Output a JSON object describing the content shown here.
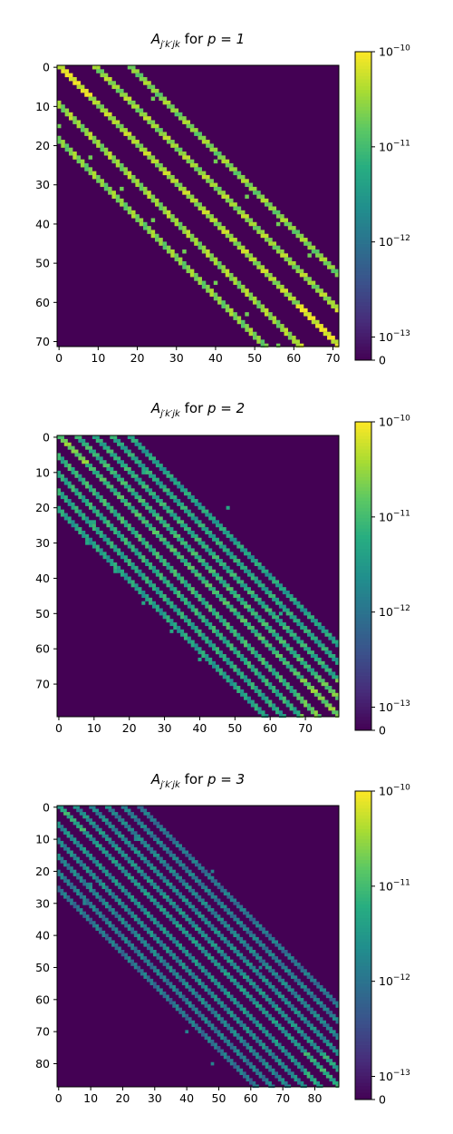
{
  "chart_data": [
    {
      "type": "heatmap",
      "title": {
        "symbol": "A",
        "subscript": "j′k′jk",
        "text": " for ",
        "param": "p = 1"
      },
      "size": 72,
      "x_ticks": [
        0,
        10,
        20,
        30,
        40,
        50,
        60,
        70
      ],
      "y_ticks": [
        0,
        10,
        20,
        30,
        40,
        50,
        60,
        70
      ],
      "colorbar": {
        "scale": "symlog",
        "range": [
          0,
          1e-10
        ],
        "linthresh": 1e-13,
        "ticks": [
          "10",
          "10",
          "10",
          "10",
          "0"
        ],
        "tick_exponents": [
          "−10",
          "−11",
          "−12",
          "−13",
          ""
        ]
      },
      "band_offsets": [
        0,
        9,
        18
      ],
      "band_level_exponent": -10.7,
      "outlier_rows": [
        [
          8,
          24
        ],
        [
          15,
          0
        ],
        [
          23,
          8
        ],
        [
          24,
          40
        ],
        [
          31,
          16
        ],
        [
          33,
          48
        ],
        [
          39,
          24
        ],
        [
          40,
          56
        ],
        [
          47,
          32
        ],
        [
          48,
          64
        ],
        [
          55,
          40
        ],
        [
          56,
          72
        ],
        [
          63,
          48
        ],
        [
          71,
          56
        ]
      ]
    },
    {
      "type": "heatmap",
      "title": {
        "symbol": "A",
        "subscript": "j′k′jk",
        "text": " for ",
        "param": "p = 2"
      },
      "size": 80,
      "x_ticks": [
        0,
        10,
        20,
        30,
        40,
        50,
        60,
        70
      ],
      "y_ticks": [
        0,
        10,
        20,
        30,
        40,
        50,
        60,
        70
      ],
      "colorbar": {
        "scale": "symlog",
        "range": [
          0,
          1e-10
        ],
        "linthresh": 1e-13,
        "ticks": [
          "10",
          "10",
          "10",
          "10",
          "0"
        ],
        "tick_exponents": [
          "−10",
          "−11",
          "−12",
          "−13",
          ""
        ]
      },
      "band_offsets": [
        0,
        5,
        10,
        15,
        20
      ],
      "band_level_exponent": -11.3,
      "outlier_rows": [
        [
          10,
          24
        ],
        [
          24,
          10
        ],
        [
          20,
          48
        ],
        [
          30,
          8
        ],
        [
          38,
          16
        ],
        [
          40,
          56
        ],
        [
          47,
          24
        ],
        [
          50,
          63
        ],
        [
          55,
          32
        ],
        [
          63,
          40
        ]
      ]
    },
    {
      "type": "heatmap",
      "title": {
        "symbol": "A",
        "subscript": "j′k′jk",
        "text": " for ",
        "param": "p = 3"
      },
      "size": 88,
      "x_ticks": [
        0,
        10,
        20,
        30,
        40,
        50,
        60,
        70,
        80
      ],
      "y_ticks": [
        0,
        10,
        20,
        30,
        40,
        50,
        60,
        70,
        80
      ],
      "colorbar": {
        "scale": "symlog",
        "range": [
          0,
          1e-10
        ],
        "linthresh": 1e-13,
        "ticks": [
          "10",
          "10",
          "10",
          "10",
          "0"
        ],
        "tick_exponents": [
          "−10",
          "−11",
          "−12",
          "−13",
          ""
        ]
      },
      "band_offsets": [
        0,
        5,
        10,
        15,
        20,
        25
      ],
      "band_level_exponent": -11.8,
      "outlier_rows": [
        [
          10,
          24
        ],
        [
          24,
          10
        ],
        [
          20,
          48
        ],
        [
          30,
          8
        ],
        [
          40,
          56
        ],
        [
          50,
          63
        ],
        [
          60,
          80
        ],
        [
          70,
          40
        ],
        [
          80,
          48
        ]
      ]
    }
  ]
}
